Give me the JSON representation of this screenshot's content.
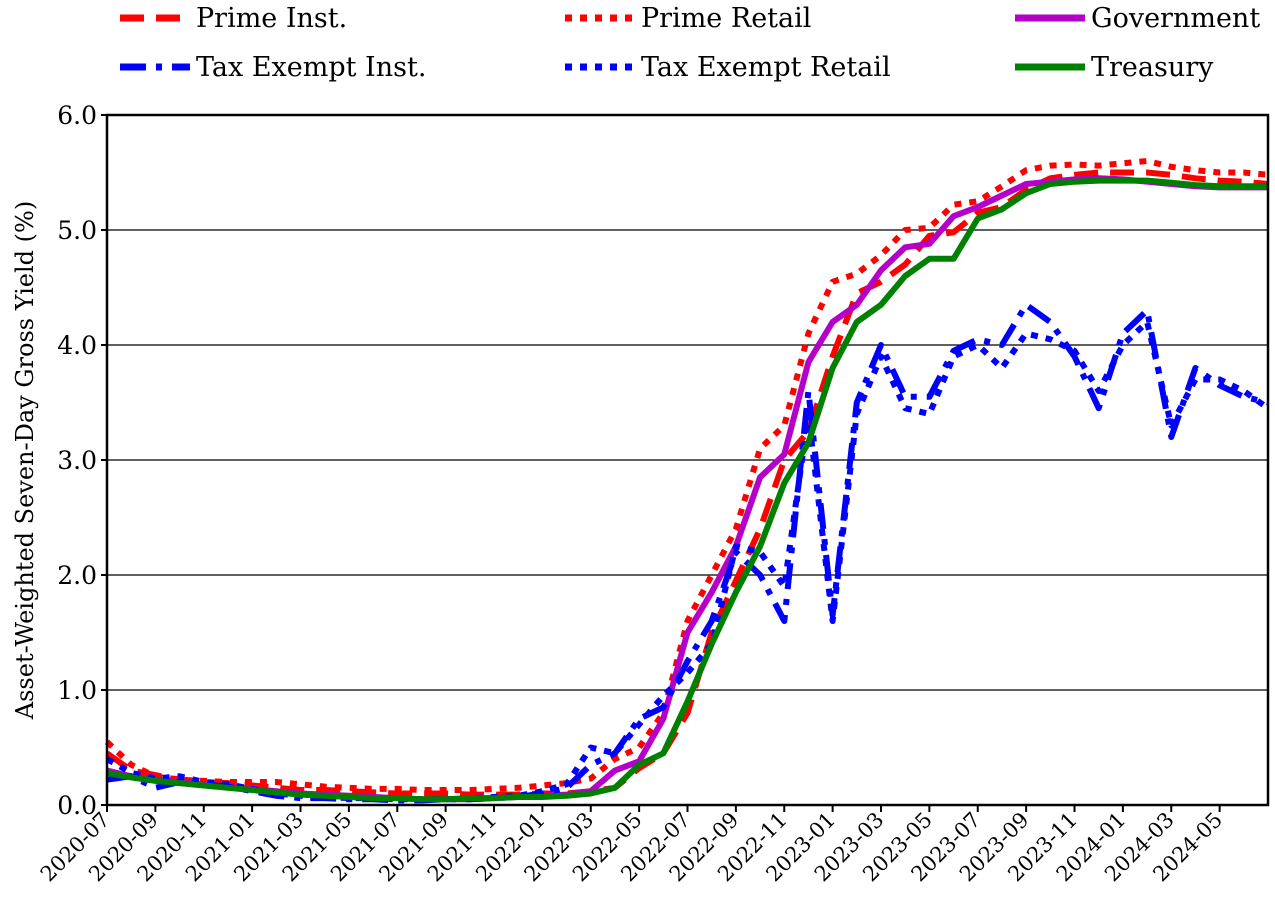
{
  "chart_data": {
    "type": "line",
    "title": "",
    "xlabel": "",
    "ylabel": "Asset-Weighted Seven-Day Gross Yield (%)",
    "ylim": [
      0,
      6
    ],
    "yticks": [
      "0.0",
      "1.0",
      "2.0",
      "3.0",
      "4.0",
      "5.0",
      "6.0"
    ],
    "grid": "horizontal",
    "legend_position": "top",
    "x_tick_labels": [
      "2020-07",
      "2020-09",
      "2020-11",
      "2021-01",
      "2021-03",
      "2021-05",
      "2021-07",
      "2021-09",
      "2021-11",
      "2022-01",
      "2022-03",
      "2022-05",
      "2022-07",
      "2022-09",
      "2022-11",
      "2023-01",
      "2023-03",
      "2023-05",
      "2023-07",
      "2023-09",
      "2023-11",
      "2024-01",
      "2024-03",
      "2024-05"
    ],
    "x_month_start": "2020-07",
    "series": [
      {
        "name": "Prime Inst.",
        "color": "#ff0000",
        "style": "dashed",
        "values": [
          0.45,
          0.3,
          0.26,
          0.22,
          0.2,
          0.19,
          0.17,
          0.15,
          0.13,
          0.13,
          0.12,
          0.11,
          0.1,
          0.1,
          0.1,
          0.09,
          0.09,
          0.09,
          0.1,
          0.1,
          0.12,
          0.15,
          0.32,
          0.45,
          0.8,
          1.5,
          1.95,
          2.4,
          3.0,
          3.25,
          3.9,
          4.45,
          4.55,
          4.7,
          4.95,
          4.98,
          5.15,
          5.2,
          5.35,
          5.45,
          5.48,
          5.5,
          5.5,
          5.5,
          5.48,
          5.45,
          5.43,
          5.42,
          5.4
        ]
      },
      {
        "name": "Prime Retail",
        "color": "#ff0000",
        "style": "dotted",
        "values": [
          0.55,
          0.35,
          0.25,
          0.22,
          0.21,
          0.2,
          0.2,
          0.2,
          0.18,
          0.16,
          0.15,
          0.14,
          0.14,
          0.13,
          0.13,
          0.13,
          0.14,
          0.15,
          0.17,
          0.19,
          0.23,
          0.4,
          0.5,
          0.8,
          1.6,
          2.0,
          2.4,
          3.1,
          3.3,
          4.1,
          4.55,
          4.62,
          4.78,
          5.0,
          5.02,
          5.22,
          5.25,
          5.38,
          5.52,
          5.56,
          5.57,
          5.56,
          5.58,
          5.6,
          5.55,
          5.52,
          5.5,
          5.5,
          5.48
        ]
      },
      {
        "name": "Government",
        "color": "#b400c8",
        "style": "solid",
        "values": [
          0.3,
          0.25,
          0.22,
          0.2,
          0.18,
          0.16,
          0.14,
          0.12,
          0.1,
          0.09,
          0.08,
          0.07,
          0.06,
          0.05,
          0.05,
          0.05,
          0.06,
          0.07,
          0.08,
          0.09,
          0.12,
          0.3,
          0.38,
          0.75,
          1.5,
          1.85,
          2.25,
          2.85,
          3.05,
          3.85,
          4.2,
          4.35,
          4.65,
          4.85,
          4.88,
          5.12,
          5.2,
          5.3,
          5.4,
          5.42,
          5.44,
          5.45,
          5.44,
          5.42,
          5.4,
          5.38,
          5.37,
          5.37,
          5.37
        ]
      },
      {
        "name": "Tax Exempt Inst.",
        "color": "#0000ff",
        "style": "dashdot",
        "values": [
          0.22,
          0.25,
          0.15,
          0.2,
          0.18,
          0.16,
          0.12,
          0.08,
          0.06,
          0.06,
          0.05,
          0.05,
          0.04,
          0.04,
          0.05,
          0.05,
          0.06,
          0.07,
          0.1,
          0.15,
          0.35,
          0.45,
          0.75,
          0.85,
          1.25,
          1.6,
          2.2,
          2.0,
          1.6,
          3.6,
          1.65,
          3.5,
          4.0,
          3.55,
          3.55,
          3.95,
          4.05,
          4.0,
          4.35,
          4.2,
          3.9,
          3.45,
          4.1,
          4.3,
          3.2,
          3.8,
          3.65,
          3.55,
          3.5
        ]
      },
      {
        "name": "Tax Exempt Retail",
        "color": "#0000ff",
        "style": "dotted",
        "values": [
          0.4,
          0.28,
          0.23,
          0.25,
          0.2,
          0.18,
          0.14,
          0.1,
          0.08,
          0.07,
          0.06,
          0.06,
          0.05,
          0.05,
          0.05,
          0.06,
          0.07,
          0.08,
          0.12,
          0.18,
          0.5,
          0.45,
          0.7,
          0.95,
          1.15,
          1.4,
          2.25,
          2.2,
          1.9,
          3.4,
          1.6,
          3.4,
          3.9,
          3.45,
          3.4,
          3.9,
          4.0,
          3.8,
          4.1,
          4.05,
          3.95,
          3.6,
          4.0,
          4.2,
          3.3,
          3.7,
          3.7,
          3.6,
          3.45
        ]
      },
      {
        "name": "Treasury",
        "color": "#008000",
        "style": "solid",
        "values": [
          0.28,
          0.24,
          0.21,
          0.19,
          0.17,
          0.15,
          0.13,
          0.11,
          0.09,
          0.08,
          0.07,
          0.06,
          0.06,
          0.05,
          0.05,
          0.06,
          0.06,
          0.07,
          0.07,
          0.08,
          0.1,
          0.15,
          0.35,
          0.45,
          0.9,
          1.4,
          1.85,
          2.25,
          2.8,
          3.15,
          3.8,
          4.2,
          4.35,
          4.6,
          4.75,
          4.75,
          5.1,
          5.18,
          5.32,
          5.4,
          5.42,
          5.43,
          5.43,
          5.43,
          5.41,
          5.39,
          5.38,
          5.38,
          5.38
        ]
      }
    ]
  }
}
